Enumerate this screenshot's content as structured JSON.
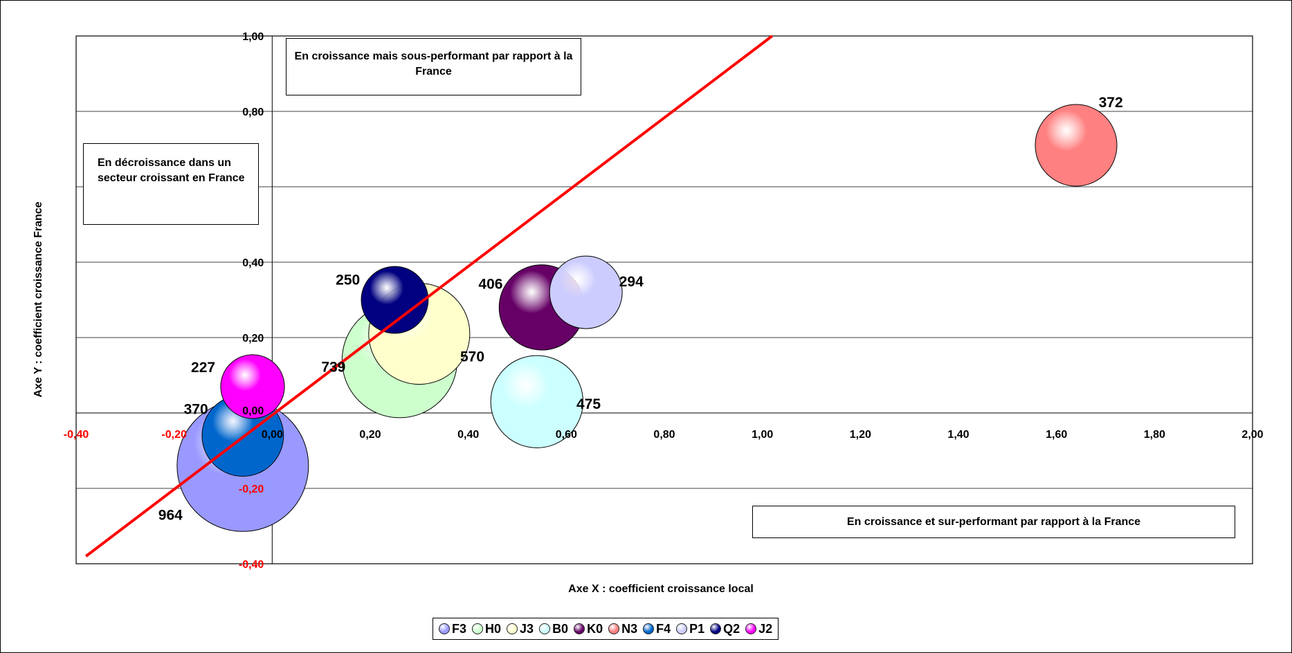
{
  "chart_data": {
    "type": "bubble",
    "title": "",
    "xlabel": "Axe X : coefficient croissance local",
    "ylabel": "Axe Y : coefficient croissance France",
    "xlim": [
      -0.4,
      2.0
    ],
    "ylim": [
      -0.4,
      1.0
    ],
    "x_ticks": [
      "-0,40",
      "-0,20",
      "0,00",
      "0,20",
      "0,40",
      "0,60",
      "0,80",
      "1,00",
      "1,20",
      "1,40",
      "1,60",
      "1,80",
      "2,00"
    ],
    "y_ticks": [
      "-0,40",
      "-0,20",
      "0,00",
      "0,20",
      "0,40",
      "0,80",
      "1,00"
    ],
    "grid": "horizontal",
    "legend_position": "bottom",
    "reference_line": {
      "from": [
        -0.38,
        -0.38
      ],
      "to": [
        1.02,
        1.0
      ],
      "color": "#ff0000"
    },
    "series": [
      {
        "name": "F3",
        "x": -0.06,
        "y": -0.14,
        "size": 964,
        "color": "#9999ff"
      },
      {
        "name": "H0",
        "x": 0.26,
        "y": 0.14,
        "size": 739,
        "color": "#ccffcc"
      },
      {
        "name": "J3",
        "x": 0.3,
        "y": 0.21,
        "size": 570,
        "color": "#ffffcc"
      },
      {
        "name": "B0",
        "x": 0.54,
        "y": 0.03,
        "size": 475,
        "color": "#ccffff"
      },
      {
        "name": "K0",
        "x": 0.55,
        "y": 0.28,
        "size": 406,
        "color": "#660066"
      },
      {
        "name": "N3",
        "x": 1.64,
        "y": 0.71,
        "size": 372,
        "color": "#ff8080"
      },
      {
        "name": "F4",
        "x": -0.06,
        "y": -0.06,
        "size": 370,
        "color": "#0066cc"
      },
      {
        "name": "P1",
        "x": 0.64,
        "y": 0.32,
        "size": 294,
        "color": "#ccccff"
      },
      {
        "name": "Q2",
        "x": 0.25,
        "y": 0.3,
        "size": 250,
        "color": "#000080"
      },
      {
        "name": "J2",
        "x": -0.04,
        "y": 0.07,
        "size": 227,
        "color": "#ff00ff"
      }
    ],
    "annotations": {
      "top": "En croissance mais sous-performant par rapport à la France",
      "left": "En décroissance dans un secteur croissant en France",
      "bottom_right": "En croissance et sur-performant par rapport à la France"
    }
  },
  "colors": {
    "negative_tick": "#ff0000",
    "reference_line": "#ff0000",
    "grid": "#000000"
  }
}
